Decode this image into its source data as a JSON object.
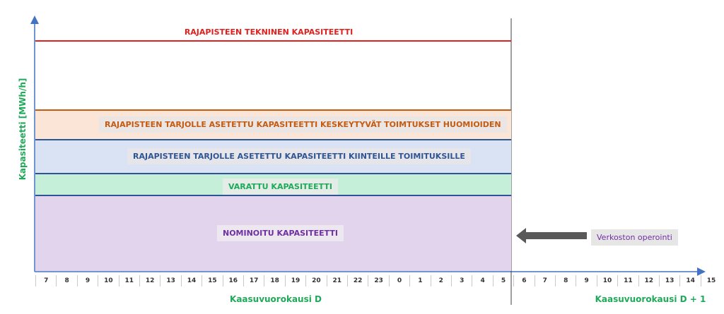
{
  "diagram": {
    "y_axis_label": "Kapasiteetti [MWh/h]",
    "technical_capacity": "RAJAPISTEEN TEKNINEN KAPASITEETTI",
    "interruptible_capacity": "RAJAPISTEEN TARJOLLE ASETETTU KAPASITEETTI KESKEYTYVÄT TOIMTUKSET HUOMIOIDEN",
    "firm_capacity": "RAJAPISTEEN TARJOLLE ASETETTU KAPASITEETTI KIINTEILLE TOIMITUKSILLE",
    "booked_capacity": "VARATTU KAPASITEETTI",
    "nominated_capacity": "NOMINOITU KAPASITEETTI",
    "network_operation": "Verkoston operointi",
    "gas_day_d": "Kaasuvuorokausi D",
    "gas_day_d1": "Kaasuvuorokausi D + 1",
    "hours": [
      "7",
      "8",
      "9",
      "10",
      "11",
      "12",
      "13",
      "14",
      "15",
      "16",
      "17",
      "18",
      "19",
      "20",
      "21",
      "22",
      "23",
      "0",
      "1",
      "2",
      "3",
      "4",
      "5",
      "6",
      "7",
      "8",
      "9",
      "10",
      "11",
      "12",
      "13",
      "14",
      "15"
    ],
    "colors": {
      "technical": "#e0201c",
      "interruptible_fill": "#fbe5d6",
      "interruptible_border": "#c55a11",
      "firm_fill": "#dae3f3",
      "firm_border": "#2f5597",
      "booked_fill": "#c6efd9",
      "booked_border": "#2f5597",
      "nominated_fill": "#e2d4ec",
      "nominated_text": "#7030a0",
      "axis": "#4472c4",
      "green_text": "#1faa59",
      "arrow": "#595959"
    }
  }
}
